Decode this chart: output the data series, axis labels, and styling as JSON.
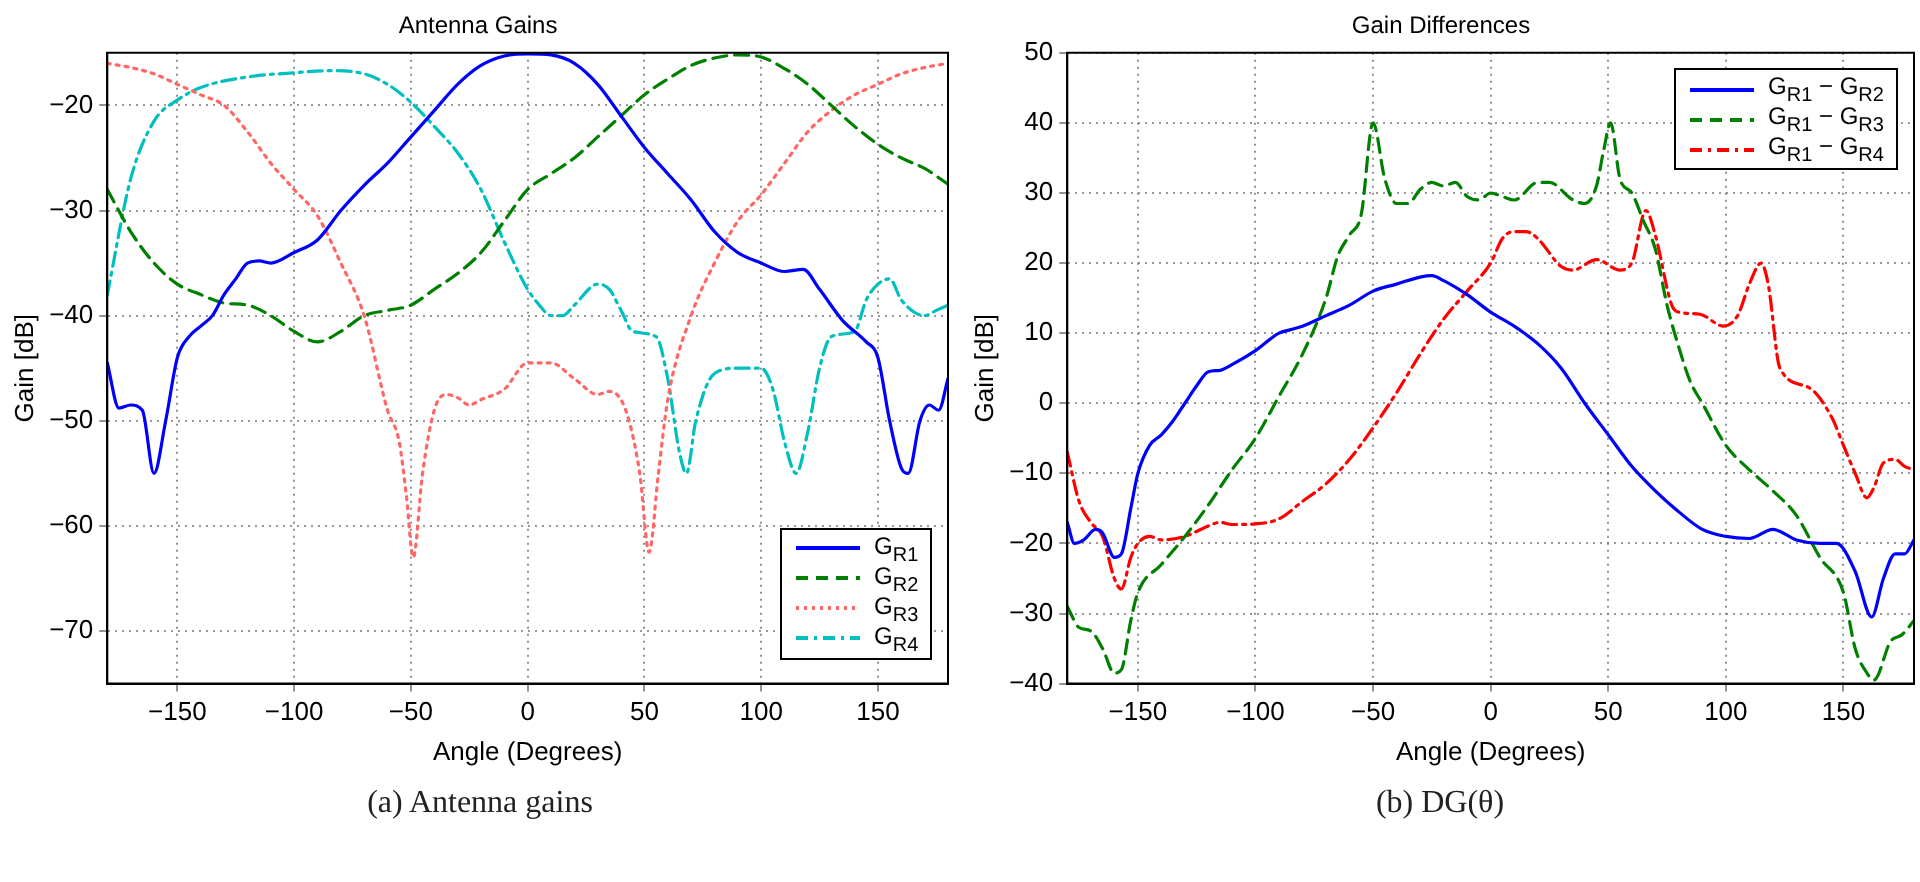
{
  "chart_data": [
    {
      "type": "line",
      "title": "Antenna Gains",
      "xlabel": "Angle (Degrees)",
      "ylabel": "Gain [dB]",
      "xlim": [
        -180,
        180
      ],
      "xticks": [
        -150,
        -100,
        -50,
        0,
        50,
        100,
        150
      ],
      "ylim": [
        -75,
        -15
      ],
      "yticks": [
        -70,
        -60,
        -50,
        -40,
        -30,
        -20
      ],
      "grid": true,
      "legend": "bottom right",
      "annotations": [
        "(a)  Antenna gains"
      ],
      "series": [
        {
          "name": "G$_{R1}$",
          "color": "#0000ff",
          "line_style": "solid",
          "x": [
            -180,
            -175,
            -170,
            -165,
            -160,
            -155,
            -150,
            -145,
            -140,
            -135,
            -130,
            -125,
            -120,
            -115,
            -110,
            -100,
            -90,
            -80,
            -70,
            -60,
            -50,
            -40,
            -30,
            -20,
            -10,
            0,
            10,
            20,
            30,
            40,
            50,
            60,
            70,
            80,
            90,
            100,
            110,
            118,
            125,
            135,
            145,
            150,
            155,
            160,
            163,
            168,
            172,
            176,
            180
          ],
          "values": [
            -44.5,
            -48.8,
            -48.5,
            -49,
            -55,
            -50,
            -44,
            -42,
            -41,
            -40,
            -38,
            -36.5,
            -35,
            -34.8,
            -35,
            -34,
            -32.8,
            -30,
            -27.6,
            -25.5,
            -23,
            -20.5,
            -18,
            -16.2,
            -15.3,
            -15.1,
            -15.2,
            -16,
            -18,
            -21,
            -24,
            -26.5,
            -29,
            -32,
            -34,
            -35,
            -35.8,
            -35.6,
            -37.5,
            -40.5,
            -42.5,
            -44,
            -50,
            -54.5,
            -55,
            -50,
            -48.5,
            -49,
            -46
          ]
        },
        {
          "name": "G$_{R2}$",
          "color": "#008000",
          "line_style": "dashed",
          "x": [
            -180,
            -170,
            -160,
            -150,
            -140,
            -130,
            -120,
            -110,
            -100,
            -90,
            -80,
            -70,
            -60,
            -50,
            -40,
            -30,
            -20,
            -10,
            0,
            10,
            20,
            30,
            40,
            50,
            60,
            70,
            80,
            90,
            100,
            110,
            120,
            130,
            140,
            150,
            160,
            170,
            180
          ],
          "values": [
            -28,
            -32,
            -35,
            -37,
            -38,
            -38.8,
            -39,
            -40,
            -41.5,
            -42.5,
            -41.5,
            -40,
            -39.5,
            -39,
            -37.5,
            -36,
            -34,
            -31,
            -28,
            -26.5,
            -25,
            -23,
            -21,
            -19,
            -17.5,
            -16.2,
            -15.5,
            -15.2,
            -15.4,
            -16.5,
            -18,
            -20,
            -22,
            -23.7,
            -25,
            -26,
            -27.5
          ]
        },
        {
          "name": "G$_{R3}$",
          "color": "#ff6666",
          "line_style": "dotted",
          "x": [
            -180,
            -170,
            -160,
            -150,
            -140,
            -130,
            -120,
            -110,
            -100,
            -90,
            -80,
            -70,
            -60,
            -55,
            -52,
            -49,
            -45,
            -40,
            -35,
            -30,
            -25,
            -20,
            -10,
            0,
            10,
            20,
            30,
            35,
            42,
            48,
            52,
            56,
            60,
            70,
            80,
            90,
            100,
            110,
            120,
            130,
            140,
            150,
            160,
            170,
            180
          ],
          "values": [
            -16,
            -16.4,
            -17,
            -18,
            -19,
            -20,
            -22.5,
            -25.5,
            -28,
            -30.5,
            -35,
            -40,
            -49,
            -52,
            -57,
            -63,
            -55,
            -49,
            -47.5,
            -47.8,
            -48.5,
            -48,
            -47,
            -44.5,
            -44.5,
            -46,
            -47.5,
            -47.2,
            -49,
            -55,
            -62.5,
            -55,
            -48,
            -40,
            -35,
            -31,
            -28.5,
            -25.5,
            -22.5,
            -20.5,
            -19,
            -18,
            -17,
            -16.4,
            -16
          ]
        },
        {
          "name": "G$_{R4}$",
          "color": "#00bfbf",
          "line_style": "dashdot",
          "x": [
            -180,
            -170,
            -160,
            -150,
            -140,
            -120,
            -100,
            -85,
            -70,
            -60,
            -50,
            -40,
            -30,
            -20,
            -10,
            0,
            5,
            10,
            15,
            20,
            30,
            35,
            40,
            45,
            55,
            60,
            65,
            68,
            72,
            80,
            90,
            100,
            105,
            110,
            115,
            120,
            125,
            130,
            140,
            145,
            150,
            155,
            160,
            170,
            175,
            180
          ],
          "values": [
            -38,
            -27,
            -21.5,
            -19.5,
            -18.3,
            -17.3,
            -16.9,
            -16.7,
            -17,
            -18,
            -19.7,
            -22,
            -24.5,
            -28,
            -33,
            -37.5,
            -39,
            -40,
            -40,
            -39,
            -37,
            -37.5,
            -39.5,
            -41.5,
            -42,
            -46,
            -53,
            -55,
            -50,
            -45.5,
            -45,
            -45,
            -47,
            -52,
            -55,
            -51,
            -45,
            -42,
            -41.5,
            -38.5,
            -37,
            -36.5,
            -38.5,
            -40,
            -39.5,
            -39
          ]
        }
      ]
    },
    {
      "type": "line",
      "title": "Gain Differences",
      "xlabel": "Angle (Degrees)",
      "ylabel": "Gain [dB]",
      "xlim": [
        -180,
        180
      ],
      "xticks": [
        -150,
        -100,
        -50,
        0,
        50,
        100,
        150
      ],
      "ylim": [
        -40,
        50
      ],
      "yticks": [
        -40,
        -30,
        -20,
        -10,
        0,
        10,
        20,
        30,
        40,
        50
      ],
      "grid": true,
      "legend": "top right",
      "annotations": [
        "(b)  DG(θ)"
      ],
      "series": [
        {
          "name": "G$_{R1}$ − G$_{R2}$",
          "color": "#0000ff",
          "line_style": "solid",
          "x": [
            -180,
            -177,
            -173,
            -168,
            -165,
            -160,
            -157,
            -153,
            -150,
            -145,
            -140,
            -135,
            -130,
            -125,
            -120,
            -115,
            -110,
            -100,
            -90,
            -85,
            -80,
            -70,
            -60,
            -50,
            -40,
            -30,
            -25,
            -20,
            -10,
            0,
            10,
            20,
            30,
            40,
            50,
            60,
            70,
            80,
            90,
            100,
            110,
            120,
            130,
            140,
            147,
            155,
            162,
            167,
            172,
            176,
            180
          ],
          "values": [
            -17,
            -20,
            -19.5,
            -18,
            -18.5,
            -22,
            -21.5,
            -15,
            -10,
            -6,
            -4.5,
            -2.5,
            0,
            2.5,
            4.5,
            4.7,
            5.5,
            7.5,
            10,
            10.5,
            11,
            12.5,
            14,
            16,
            17,
            18,
            18.2,
            17.5,
            15.5,
            13,
            11,
            8.5,
            5,
            0,
            -4.5,
            -9,
            -12.5,
            -15.5,
            -18,
            -19,
            -19.3,
            -18,
            -19.5,
            -20,
            -20,
            -24,
            -30.5,
            -25,
            -21.5,
            -21.5,
            -19.5
          ]
        },
        {
          "name": "G$_{R1}$ − G$_{R3}$",
          "color": "#008000",
          "line_style": "dashed",
          "x": [
            -180,
            -175,
            -170,
            -165,
            -160,
            -157,
            -153,
            -150,
            -140,
            -130,
            -120,
            -110,
            -100,
            -90,
            -80,
            -70,
            -65,
            -60,
            -55,
            -50,
            -45,
            -40,
            -35,
            -30,
            -25,
            -20,
            -15,
            -10,
            -5,
            0,
            5,
            10,
            20,
            25,
            35,
            40,
            45,
            48,
            51,
            55,
            60,
            65,
            70,
            75,
            80,
            85,
            90,
            100,
            110,
            120,
            130,
            140,
            150,
            155,
            160,
            163,
            170,
            175,
            180
          ],
          "values": [
            -29,
            -32,
            -32.5,
            -35,
            -38.5,
            -38,
            -31,
            -27,
            -23,
            -19,
            -14.5,
            -9.5,
            -5,
            1,
            7,
            15,
            21,
            24,
            27,
            40,
            32,
            28.5,
            28.5,
            30.5,
            31.5,
            31,
            31.5,
            29.5,
            29,
            30,
            29.5,
            29,
            31.5,
            31.5,
            29,
            28.5,
            31,
            36,
            40,
            32,
            30,
            26,
            22,
            14,
            8,
            3,
            0,
            -6,
            -9.5,
            -12.5,
            -16,
            -22,
            -27,
            -35,
            -38.5,
            -39.5,
            -34,
            -33,
            -31
          ]
        },
        {
          "name": "G$_{R1}$ − G$_{R4}$",
          "color": "#ff0000",
          "line_style": "dashdot",
          "x": [
            -180,
            -175,
            -170,
            -165,
            -160,
            -157,
            -153,
            -150,
            -145,
            -140,
            -130,
            -120,
            -115,
            -110,
            -100,
            -90,
            -80,
            -70,
            -60,
            -50,
            -40,
            -30,
            -20,
            -10,
            0,
            5,
            10,
            15,
            20,
            30,
            35,
            45,
            55,
            60,
            66,
            70,
            77,
            80,
            89,
            99,
            105,
            110,
            115,
            118,
            123,
            135,
            145,
            150,
            155,
            160,
            163,
            167,
            172,
            176,
            180
          ],
          "values": [
            -7,
            -14,
            -17,
            -19,
            -25,
            -26.5,
            -22,
            -20,
            -19,
            -19.5,
            -19,
            -17.5,
            -17,
            -17.3,
            -17.2,
            -16.5,
            -14,
            -11.5,
            -8,
            -3.5,
            1.5,
            7,
            12,
            16,
            20,
            23.5,
            24.5,
            24.5,
            23.5,
            19.5,
            19,
            20.5,
            19,
            20,
            27.5,
            24,
            14,
            13,
            12.7,
            11,
            12.5,
            17,
            20,
            17,
            5,
            2.3,
            -2,
            -6,
            -10,
            -13.5,
            -12,
            -8.5,
            -8,
            -9,
            -9.5
          ]
        }
      ]
    }
  ]
}
